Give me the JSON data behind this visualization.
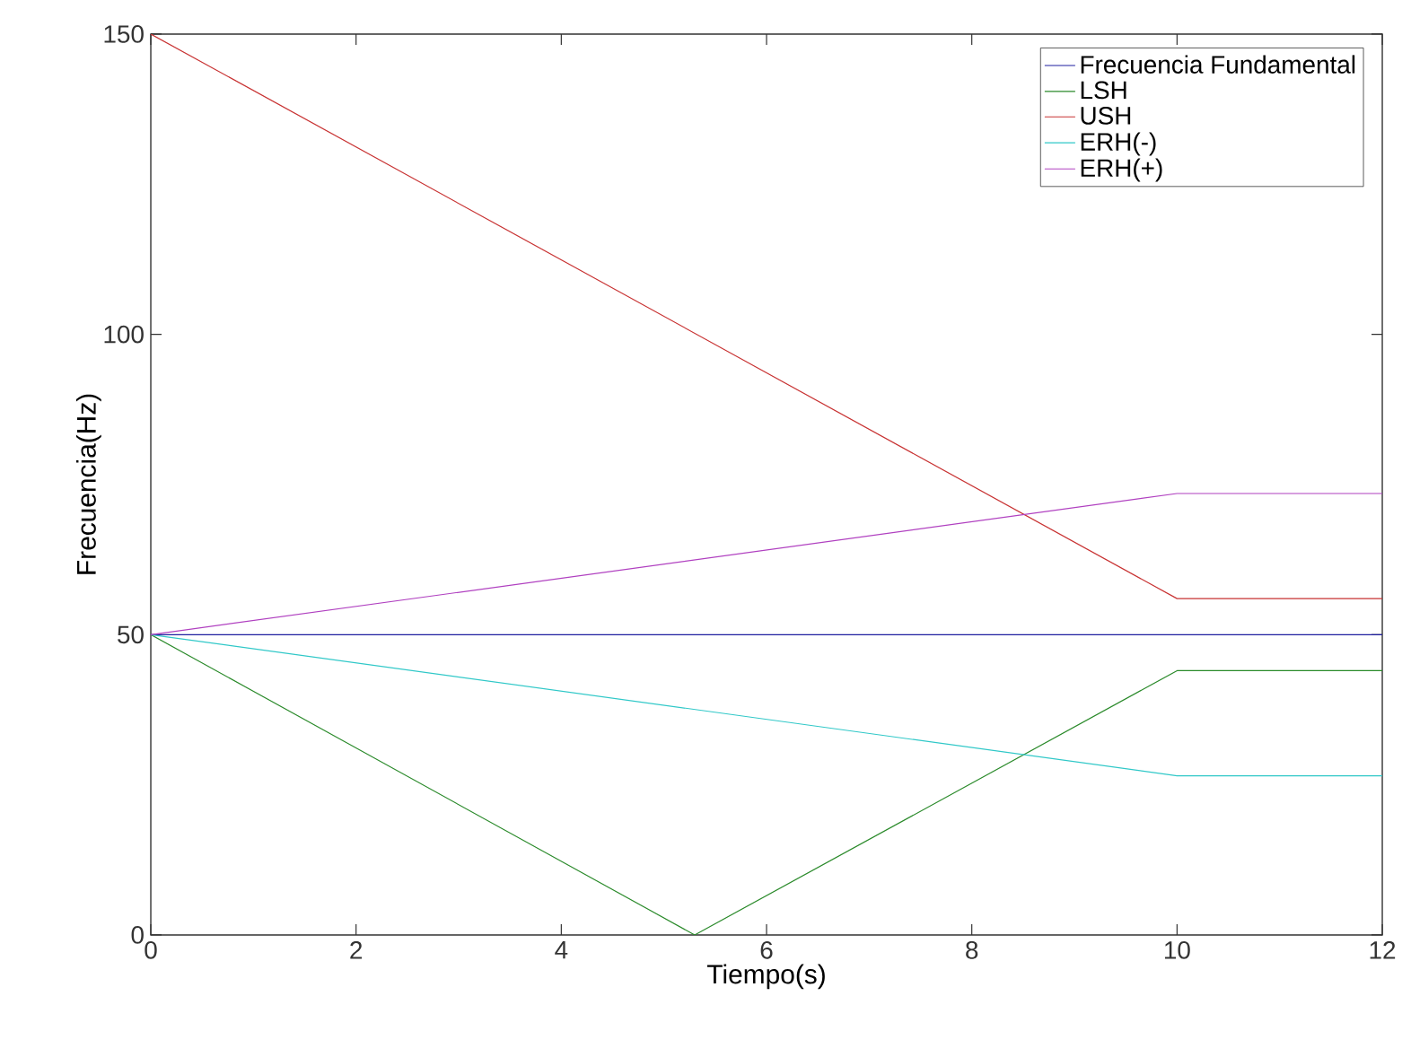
{
  "chart_data": {
    "type": "line",
    "xlabel": "Tiempo(s)",
    "ylabel": "Frecuencia(Hz)",
    "xlim": [
      0,
      12
    ],
    "ylim": [
      0,
      150
    ],
    "xticks": [
      0,
      2,
      4,
      6,
      8,
      10,
      12
    ],
    "yticks": [
      0,
      50,
      100,
      150
    ],
    "grid": false,
    "legend": "top right",
    "marker": "none",
    "line_style": "solid",
    "series": [
      {
        "name": "Frecuencia Fundamental",
        "color": "#1f1f9f",
        "x": [
          0,
          10,
          12
        ],
        "values": [
          50,
          50,
          50
        ]
      },
      {
        "name": "LSH",
        "color": "#2a8a2a",
        "x": [
          0,
          5.3,
          10,
          12
        ],
        "values": [
          50,
          0,
          44,
          44
        ]
      },
      {
        "name": "USH",
        "color": "#c83232",
        "x": [
          0,
          10,
          12
        ],
        "values": [
          150,
          56,
          56
        ]
      },
      {
        "name": "ERH(-)",
        "color": "#30c8c8",
        "x": [
          0,
          10,
          12
        ],
        "values": [
          50,
          26.5,
          26.5
        ]
      },
      {
        "name": "ERH(+)",
        "color": "#b040c0",
        "x": [
          0,
          10,
          12
        ],
        "values": [
          50,
          73.5,
          73.5
        ]
      }
    ]
  }
}
